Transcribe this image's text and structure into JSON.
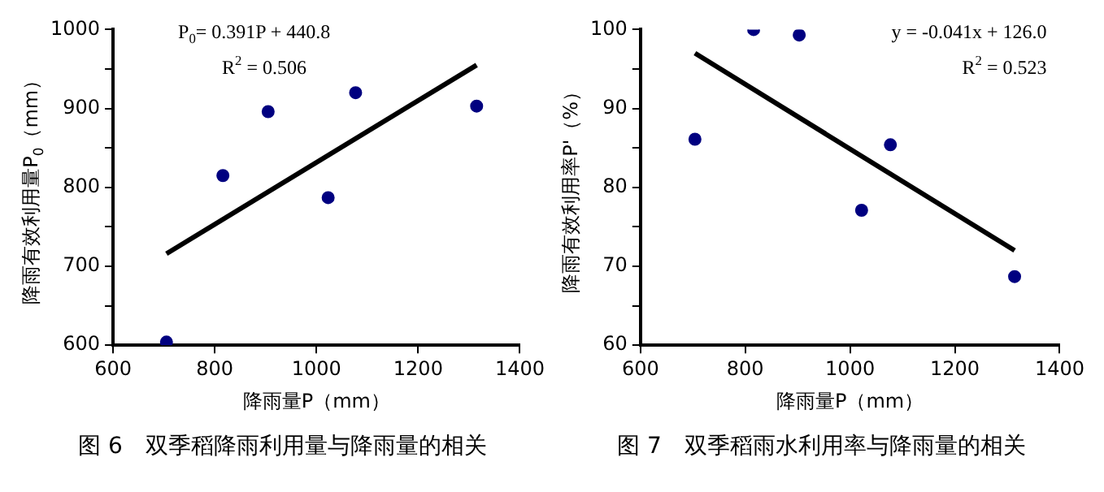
{
  "chart_data": [
    {
      "type": "scatter",
      "title": "图 6　双季稻降雨利用量与降雨量的相关",
      "xlabel": "降雨量P（mm）",
      "ylabel": "降雨有效利用量P$_{0}$（mm）",
      "x": [
        705,
        816,
        905,
        1023,
        1077,
        1315
      ],
      "series": [
        {
          "color": "#000080",
          "marker": "circle",
          "values": [
            604,
            815,
            896,
            787,
            920,
            903
          ]
        },
        {
          "type": "line",
          "color": "#000000",
          "marker": "none",
          "values": [
            716,
            null,
            null,
            null,
            null,
            955
          ]
        }
      ],
      "annotations": [
        "P$_{0}$= 0.391P + 440.8",
        "R$^{2}$ = 0.506"
      ],
      "xlim": [
        600,
        1400
      ],
      "xticks": [
        600,
        800,
        1000,
        1200,
        1400
      ],
      "ylim": [
        600,
        1000
      ],
      "yticks": [
        600,
        {
          "value": 650,
          "label": null
        },
        700,
        {
          "value": 750,
          "label": null
        },
        800,
        {
          "value": 850,
          "label": null
        },
        900,
        {
          "value": 950,
          "label": null
        },
        1000
      ],
      "grid": false,
      "legend": false
    },
    {
      "type": "scatter",
      "title": "图 7　双季稻雨水利用率与降雨量的相关",
      "xlabel": "降雨量P（mm）",
      "ylabel": "降雨有效利用率P'（%）",
      "x": [
        704,
        816,
        903,
        1022,
        1077,
        1314
      ],
      "series": [
        {
          "color": "#000080",
          "marker": "circle",
          "values": [
            86.1,
            100,
            99.3,
            77.1,
            85.4,
            68.7
          ]
        },
        {
          "type": "line",
          "color": "#000000",
          "marker": "none",
          "values": [
            97,
            null,
            null,
            null,
            null,
            72
          ]
        }
      ],
      "annotations": [
        "y = -0.041x + 126.0",
        "R$^{2}$ = 0.523"
      ],
      "xlim": [
        600,
        1400
      ],
      "xticks": [
        600,
        800,
        1000,
        1200,
        1400
      ],
      "ylim": [
        60,
        100
      ],
      "yticks": [
        60,
        {
          "value": 65,
          "label": null
        },
        70,
        {
          "value": 75,
          "label": null
        },
        80,
        {
          "value": 85,
          "label": null
        },
        90,
        {
          "value": 95,
          "label": null
        },
        100
      ],
      "grid": false,
      "legend": false
    }
  ]
}
